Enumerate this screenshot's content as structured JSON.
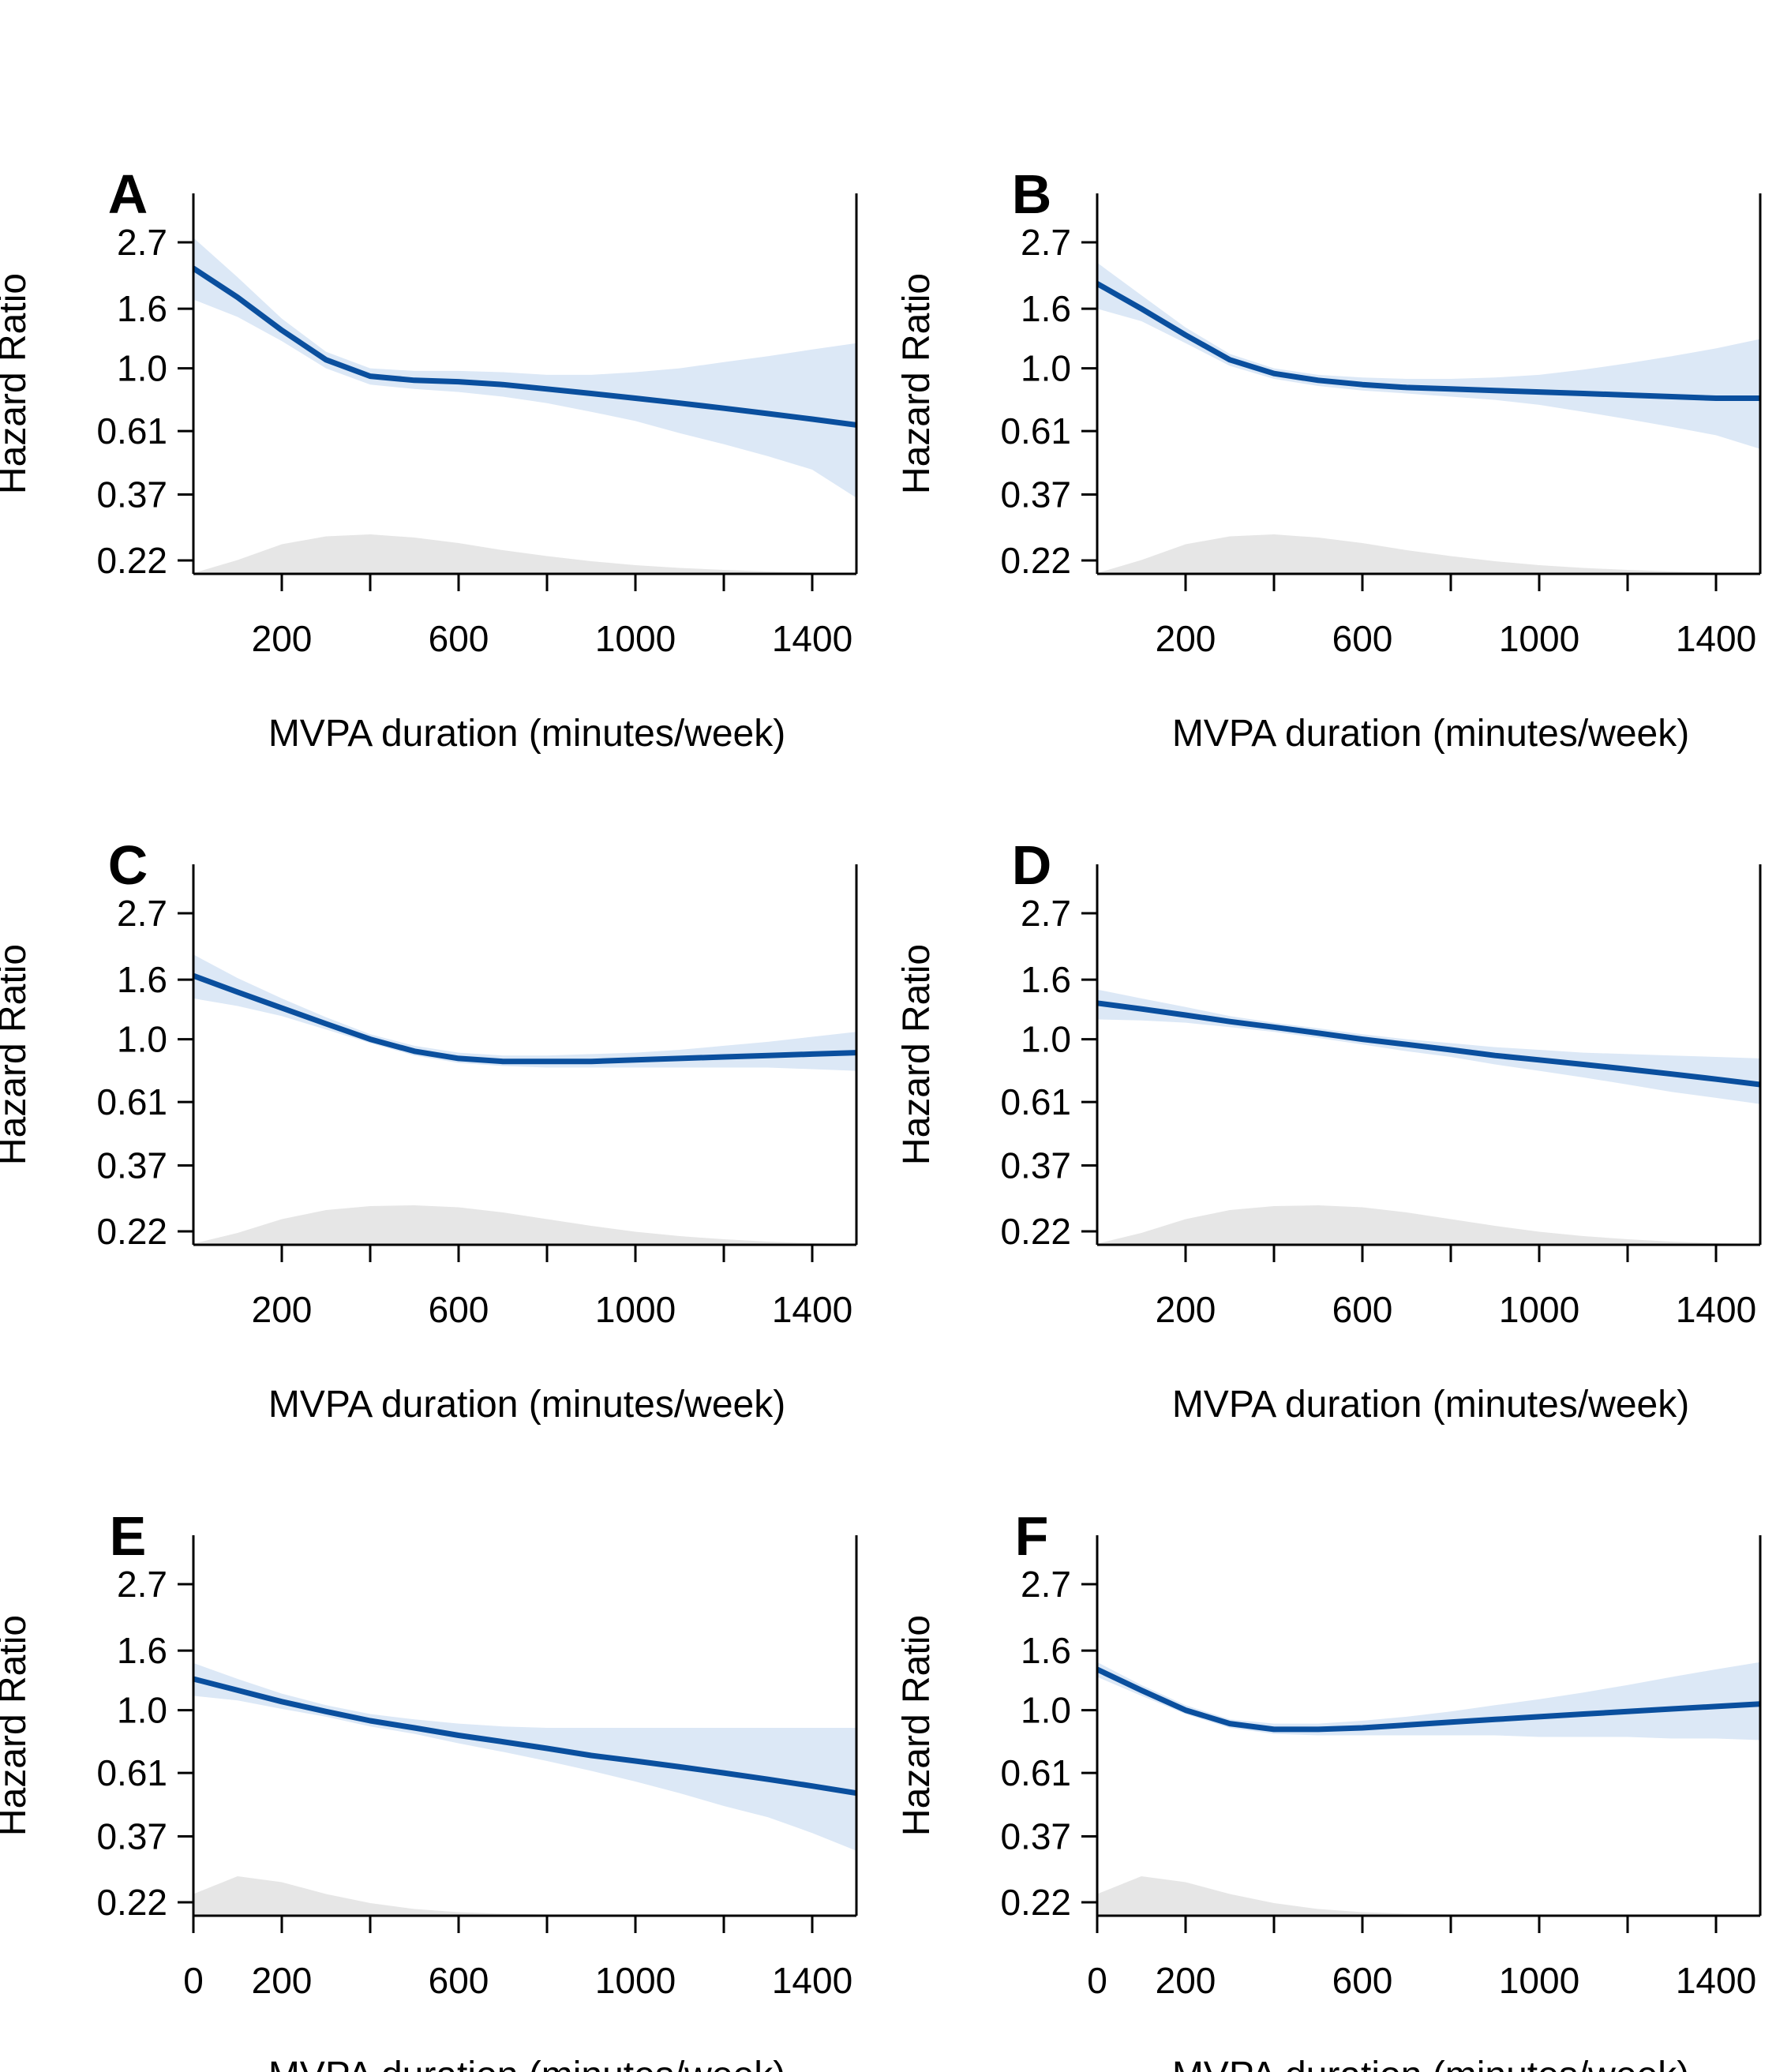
{
  "figure": {
    "colors": {
      "line": "#0a4f9e",
      "ci_band": "#dce8f6",
      "density": "#e6e6e6",
      "axis": "#000000"
    }
  },
  "chart_data": [
    {
      "panel": "A",
      "type": "line",
      "xlabel": "MVPA duration (minutes/week)",
      "ylabel": "Hazard Ratio",
      "xlim": [
        0,
        1500
      ],
      "ylog": true,
      "y_ticks": [
        0.22,
        0.37,
        0.61,
        1.0,
        1.6,
        2.7
      ],
      "y_tick_labels": [
        "0.22",
        "0.37",
        "0.61",
        "1.0",
        "1.6",
        "2.7"
      ],
      "x_ticks": [
        200,
        400,
        600,
        800,
        1000,
        1200,
        1400
      ],
      "x_tick_labels": [
        "200",
        "",
        "600",
        "",
        "1000",
        "",
        "1400"
      ],
      "series": [
        {
          "x": [
            0,
            100,
            200,
            300,
            400,
            500,
            600,
            700,
            800,
            900,
            1000,
            1100,
            1200,
            1300,
            1400,
            1500
          ],
          "y": [
            2.2,
            1.75,
            1.35,
            1.07,
            0.94,
            0.91,
            0.9,
            0.88,
            0.85,
            0.82,
            0.79,
            0.76,
            0.73,
            0.7,
            0.67,
            0.64
          ],
          "lower": [
            1.72,
            1.5,
            1.24,
            1.0,
            0.88,
            0.85,
            0.83,
            0.8,
            0.76,
            0.71,
            0.66,
            0.6,
            0.55,
            0.5,
            0.45,
            0.36
          ],
          "upper": [
            2.8,
            2.05,
            1.48,
            1.14,
            1.0,
            0.98,
            0.98,
            0.97,
            0.95,
            0.95,
            0.97,
            1.0,
            1.05,
            1.1,
            1.16,
            1.22
          ]
        }
      ],
      "density": {
        "x": [
          0,
          100,
          200,
          300,
          400,
          500,
          600,
          700,
          800,
          900,
          1000,
          1100,
          1200,
          1300,
          1400,
          1500
        ],
        "y": [
          0.02,
          0.35,
          0.75,
          0.95,
          1.0,
          0.92,
          0.78,
          0.6,
          0.45,
          0.32,
          0.22,
          0.15,
          0.1,
          0.06,
          0.03,
          0.01
        ]
      }
    },
    {
      "panel": "B",
      "type": "line",
      "xlabel": "MVPA duration (minutes/week)",
      "ylabel": "Hazard Ratio",
      "xlim": [
        0,
        1500
      ],
      "ylog": true,
      "y_ticks": [
        0.22,
        0.37,
        0.61,
        1.0,
        1.6,
        2.7
      ],
      "y_tick_labels": [
        "0.22",
        "0.37",
        "0.61",
        "1.0",
        "1.6",
        "2.7"
      ],
      "x_ticks": [
        200,
        400,
        600,
        800,
        1000,
        1200,
        1400
      ],
      "x_tick_labels": [
        "200",
        "",
        "600",
        "",
        "1000",
        "",
        "1400"
      ],
      "series": [
        {
          "x": [
            0,
            100,
            200,
            300,
            400,
            500,
            600,
            700,
            800,
            900,
            1000,
            1100,
            1200,
            1300,
            1400,
            1500
          ],
          "y": [
            1.95,
            1.6,
            1.3,
            1.07,
            0.96,
            0.91,
            0.88,
            0.86,
            0.85,
            0.84,
            0.83,
            0.82,
            0.81,
            0.8,
            0.79,
            0.79
          ],
          "lower": [
            1.6,
            1.45,
            1.22,
            1.02,
            0.92,
            0.87,
            0.84,
            0.82,
            0.8,
            0.78,
            0.75,
            0.71,
            0.67,
            0.63,
            0.59,
            0.53
          ],
          "upper": [
            2.3,
            1.78,
            1.38,
            1.12,
            1.0,
            0.95,
            0.93,
            0.92,
            0.92,
            0.93,
            0.95,
            0.99,
            1.04,
            1.1,
            1.17,
            1.26
          ]
        }
      ],
      "density": {
        "x": [
          0,
          100,
          200,
          300,
          400,
          500,
          600,
          700,
          800,
          900,
          1000,
          1100,
          1200,
          1300,
          1400,
          1500
        ],
        "y": [
          0.02,
          0.35,
          0.75,
          0.95,
          1.0,
          0.92,
          0.78,
          0.6,
          0.45,
          0.32,
          0.22,
          0.15,
          0.1,
          0.06,
          0.03,
          0.01
        ]
      }
    },
    {
      "panel": "C",
      "type": "line",
      "xlabel": "MVPA duration (minutes/week)",
      "ylabel": "Hazard Ratio",
      "xlim": [
        0,
        1500
      ],
      "ylog": true,
      "y_ticks": [
        0.22,
        0.37,
        0.61,
        1.0,
        1.6,
        2.7
      ],
      "y_tick_labels": [
        "0.22",
        "0.37",
        "0.61",
        "1.0",
        "1.6",
        "2.7"
      ],
      "x_ticks": [
        200,
        400,
        600,
        800,
        1000,
        1200,
        1400
      ],
      "x_tick_labels": [
        "200",
        "",
        "600",
        "",
        "1000",
        "",
        "1400"
      ],
      "series": [
        {
          "x": [
            0,
            100,
            200,
            300,
            400,
            500,
            600,
            700,
            800,
            900,
            1000,
            1100,
            1200,
            1300,
            1400,
            1500
          ],
          "y": [
            1.65,
            1.45,
            1.28,
            1.13,
            1.0,
            0.91,
            0.86,
            0.84,
            0.84,
            0.84,
            0.85,
            0.86,
            0.87,
            0.88,
            0.89,
            0.9
          ],
          "lower": [
            1.38,
            1.3,
            1.2,
            1.08,
            0.97,
            0.88,
            0.83,
            0.81,
            0.8,
            0.8,
            0.8,
            0.8,
            0.8,
            0.8,
            0.79,
            0.78
          ],
          "upper": [
            1.95,
            1.62,
            1.38,
            1.19,
            1.04,
            0.95,
            0.9,
            0.88,
            0.88,
            0.89,
            0.9,
            0.92,
            0.95,
            0.98,
            1.02,
            1.06
          ]
        }
      ],
      "density": {
        "x": [
          0,
          100,
          200,
          300,
          400,
          500,
          600,
          700,
          800,
          900,
          1000,
          1100,
          1200,
          1300,
          1400,
          1500
        ],
        "y": [
          0.03,
          0.3,
          0.65,
          0.88,
          0.98,
          1.0,
          0.95,
          0.82,
          0.65,
          0.48,
          0.33,
          0.22,
          0.14,
          0.08,
          0.04,
          0.02
        ]
      }
    },
    {
      "panel": "D",
      "type": "line",
      "xlabel": "MVPA duration (minutes/week)",
      "ylabel": "Hazard Ratio",
      "xlim": [
        0,
        1500
      ],
      "ylog": true,
      "y_ticks": [
        0.22,
        0.37,
        0.61,
        1.0,
        1.6,
        2.7
      ],
      "y_tick_labels": [
        "0.22",
        "0.37",
        "0.61",
        "1.0",
        "1.6",
        "2.7"
      ],
      "x_ticks": [
        200,
        400,
        600,
        800,
        1000,
        1200,
        1400
      ],
      "x_tick_labels": [
        "200",
        "",
        "600",
        "",
        "1000",
        "",
        "1400"
      ],
      "series": [
        {
          "x": [
            0,
            100,
            200,
            300,
            400,
            500,
            600,
            700,
            800,
            900,
            1000,
            1100,
            1200,
            1300,
            1400,
            1500
          ],
          "y": [
            1.33,
            1.27,
            1.21,
            1.15,
            1.1,
            1.05,
            1.0,
            0.96,
            0.92,
            0.88,
            0.85,
            0.82,
            0.79,
            0.76,
            0.73,
            0.7
          ],
          "lower": [
            1.17,
            1.16,
            1.14,
            1.1,
            1.06,
            1.01,
            0.96,
            0.91,
            0.87,
            0.82,
            0.78,
            0.74,
            0.7,
            0.66,
            0.63,
            0.6
          ],
          "upper": [
            1.48,
            1.38,
            1.29,
            1.2,
            1.14,
            1.09,
            1.04,
            1.0,
            0.97,
            0.94,
            0.92,
            0.9,
            0.89,
            0.88,
            0.87,
            0.86
          ]
        }
      ],
      "density": {
        "x": [
          0,
          100,
          200,
          300,
          400,
          500,
          600,
          700,
          800,
          900,
          1000,
          1100,
          1200,
          1300,
          1400,
          1500
        ],
        "y": [
          0.03,
          0.3,
          0.65,
          0.88,
          0.98,
          1.0,
          0.95,
          0.82,
          0.65,
          0.48,
          0.33,
          0.22,
          0.14,
          0.08,
          0.04,
          0.02
        ]
      }
    },
    {
      "panel": "E",
      "type": "line",
      "xlabel": "MVPA duration (minutes/week)",
      "ylabel": "Hazard Ratio",
      "xlim": [
        0,
        1500
      ],
      "ylog": true,
      "y_ticks": [
        0.22,
        0.37,
        0.61,
        1.0,
        1.6,
        2.7
      ],
      "y_tick_labels": [
        "0.22",
        "0.37",
        "0.61",
        "1.0",
        "1.6",
        "2.7"
      ],
      "x_ticks": [
        0,
        200,
        400,
        600,
        800,
        1000,
        1200,
        1400
      ],
      "x_tick_labels": [
        "0",
        "200",
        "",
        "600",
        "",
        "1000",
        "",
        "1400"
      ],
      "series": [
        {
          "x": [
            0,
            100,
            200,
            300,
            400,
            500,
            600,
            700,
            800,
            900,
            1000,
            1100,
            1200,
            1300,
            1400,
            1500
          ],
          "y": [
            1.28,
            1.17,
            1.07,
            0.99,
            0.92,
            0.87,
            0.82,
            0.78,
            0.74,
            0.7,
            0.67,
            0.64,
            0.61,
            0.58,
            0.55,
            0.52
          ],
          "lower": [
            1.12,
            1.08,
            1.01,
            0.95,
            0.88,
            0.83,
            0.77,
            0.72,
            0.67,
            0.62,
            0.57,
            0.52,
            0.47,
            0.43,
            0.38,
            0.33
          ],
          "upper": [
            1.45,
            1.28,
            1.14,
            1.04,
            0.97,
            0.93,
            0.9,
            0.88,
            0.87,
            0.87,
            0.87,
            0.87,
            0.87,
            0.87,
            0.87,
            0.87
          ]
        }
      ],
      "density": {
        "x": [
          0,
          100,
          200,
          300,
          400,
          500,
          600,
          700,
          800,
          900,
          1000,
          1100,
          1200,
          1300,
          1400,
          1500
        ],
        "y": [
          0.55,
          1.0,
          0.85,
          0.55,
          0.32,
          0.17,
          0.09,
          0.05,
          0.03,
          0.02,
          0.01,
          0.01,
          0.0,
          0.0,
          0.0,
          0.0
        ]
      }
    },
    {
      "panel": "F",
      "type": "line",
      "xlabel": "MVPA duration (minutes/week)",
      "ylabel": "Hazard Ratio",
      "xlim": [
        0,
        1500
      ],
      "ylog": true,
      "y_ticks": [
        0.22,
        0.37,
        0.61,
        1.0,
        1.6,
        2.7
      ],
      "y_tick_labels": [
        "0.22",
        "0.37",
        "0.61",
        "1.0",
        "1.6",
        "2.7"
      ],
      "x_ticks": [
        0,
        200,
        400,
        600,
        800,
        1000,
        1200,
        1400
      ],
      "x_tick_labels": [
        "0",
        "200",
        "",
        "600",
        "",
        "1000",
        "",
        "1400"
      ],
      "series": [
        {
          "x": [
            0,
            100,
            200,
            300,
            400,
            500,
            600,
            700,
            800,
            900,
            1000,
            1100,
            1200,
            1300,
            1400,
            1500
          ],
          "y": [
            1.38,
            1.17,
            1.0,
            0.9,
            0.86,
            0.86,
            0.87,
            0.89,
            0.91,
            0.93,
            0.95,
            0.97,
            0.99,
            1.01,
            1.03,
            1.05
          ],
          "lower": [
            1.3,
            1.12,
            0.97,
            0.87,
            0.83,
            0.82,
            0.82,
            0.82,
            0.82,
            0.82,
            0.81,
            0.81,
            0.81,
            0.8,
            0.8,
            0.79
          ],
          "upper": [
            1.46,
            1.22,
            1.04,
            0.93,
            0.9,
            0.9,
            0.92,
            0.95,
            0.99,
            1.04,
            1.09,
            1.15,
            1.22,
            1.3,
            1.38,
            1.46
          ]
        }
      ],
      "density": {
        "x": [
          0,
          100,
          200,
          300,
          400,
          500,
          600,
          700,
          800,
          900,
          1000,
          1100,
          1200,
          1300,
          1400,
          1500
        ],
        "y": [
          0.55,
          1.0,
          0.85,
          0.55,
          0.32,
          0.17,
          0.09,
          0.05,
          0.03,
          0.02,
          0.01,
          0.01,
          0.0,
          0.0,
          0.0,
          0.0
        ]
      }
    }
  ]
}
